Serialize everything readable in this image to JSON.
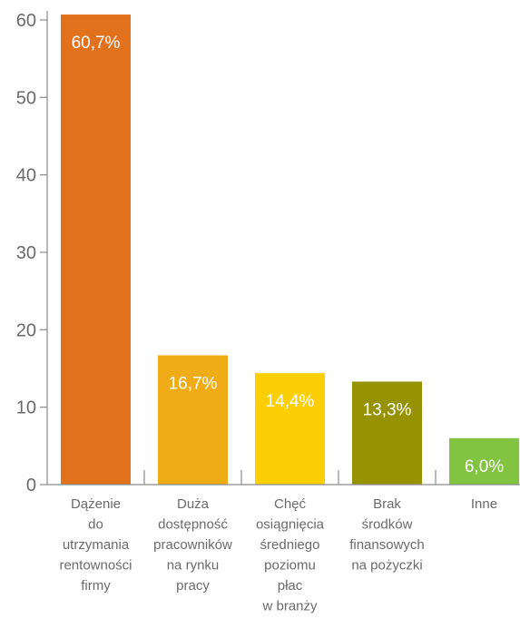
{
  "chart_data": {
    "type": "bar",
    "categories": [
      [
        "Dążenie",
        "do",
        "utrzymania",
        "rentowności",
        "firmy"
      ],
      [
        "Duża",
        "dostępność",
        "pracowników",
        "na rynku",
        "pracy"
      ],
      [
        "Chęć",
        "osiągnięcia",
        "średniego",
        "poziomu",
        "płac",
        "w branży"
      ],
      [
        "Brak",
        "środków",
        "finansowych",
        "na pożyczki"
      ],
      [
        "Inne"
      ]
    ],
    "values": [
      60.7,
      16.7,
      14.4,
      13.3,
      6.0
    ],
    "data_labels": [
      "60,7%",
      "16,7%",
      "14,4%",
      "13,3%",
      "6,0%"
    ],
    "colors": [
      "#e2711d",
      "#efac16",
      "#fccf05",
      "#979201",
      "#82c341"
    ],
    "ylim": [
      0,
      60
    ],
    "yticks": [
      "0",
      "10",
      "20",
      "30",
      "40",
      "50",
      "60"
    ],
    "title": "",
    "xlabel": "",
    "ylabel": "",
    "grid": false,
    "legend": "none"
  }
}
